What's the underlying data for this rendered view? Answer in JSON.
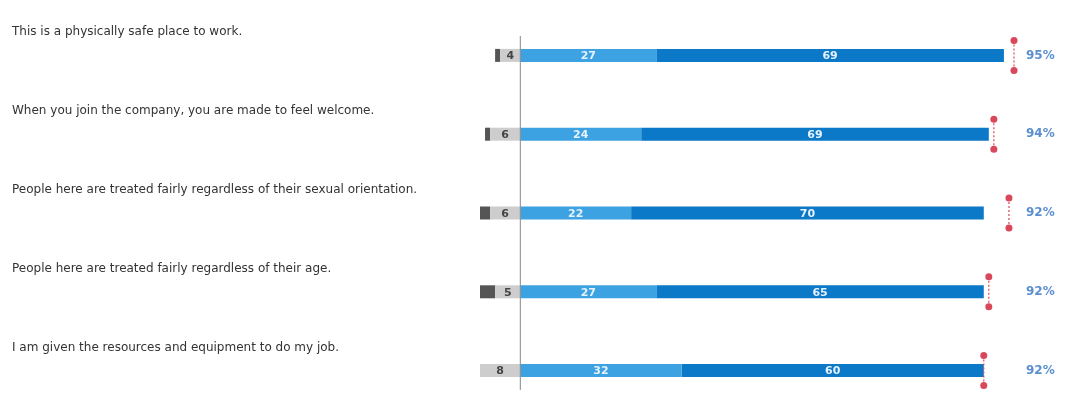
{
  "chart_data": {
    "type": "bar",
    "orientation": "horizontal",
    "stacked": true,
    "categories": [
      "This is a physically safe place to work.",
      "When you join the company, you are made to feel welcome.",
      "People here are treated fairly regardless of their sexual orientation.",
      "People here are treated fairly regardless of their age.",
      "I am given the resources and equipment to do my job."
    ],
    "legend": false,
    "series": [
      {
        "color": "#cdcdcd",
        "values": [
          -4,
          -6,
          -6,
          -5,
          -8
        ]
      },
      {
        "color": "#555555",
        "values": [
          -1,
          -1,
          -2,
          -3,
          null
        ]
      },
      {
        "color": "#3da2e2",
        "values": [
          27,
          24,
          22,
          27,
          32
        ],
        "value_labels": [
          "27",
          "24",
          "22",
          "27",
          "32"
        ]
      },
      {
        "color": "#0b78c8",
        "values": [
          69,
          69,
          70,
          65,
          60
        ],
        "value_labels": [
          "69",
          "69",
          "70",
          "65",
          "60"
        ]
      },
      {
        "type": "scatter",
        "color": "#d9475a",
        "values": [
          98,
          94,
          97,
          93,
          92
        ]
      }
    ],
    "ref_lines": [
      {
        "axis": "x",
        "value": 0,
        "color": "#888888"
      }
    ],
    "annotations": [
      {
        "text": "4",
        "x": -2,
        "y": "This is a physically safe place to work."
      },
      {
        "text": "6",
        "x": -3,
        "y": "When you join the company, you are made to feel welcome."
      },
      {
        "text": "6",
        "x": -3,
        "y": "People here are treated fairly regardless of their sexual orientation."
      },
      {
        "text": "5",
        "x": -2.5,
        "y": "People here are treated fairly regardless of their age."
      },
      {
        "text": "8",
        "x": -4,
        "y": "I am given the resources and equipment to do my job."
      },
      "95%",
      "94%",
      "92%",
      "92%",
      "92%"
    ]
  }
}
